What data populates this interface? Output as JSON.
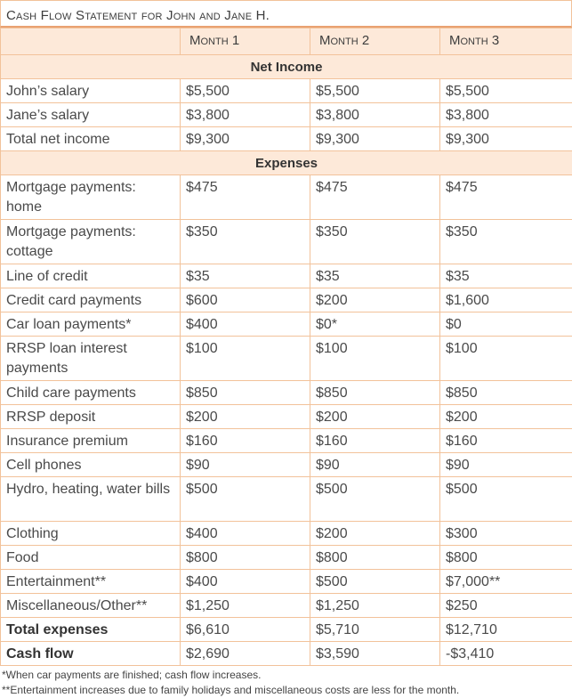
{
  "title": "Cash Flow Statement for John and Jane H.",
  "headers": [
    "Month 1",
    "Month 2",
    "Month 3"
  ],
  "sections": {
    "income_title": "Net Income",
    "expenses_title": "Expenses"
  },
  "income_rows": [
    {
      "label": "John’s salary",
      "m1": "$5,500",
      "m2": "$5,500",
      "m3": "$5,500"
    },
    {
      "label": "Jane’s salary",
      "m1": "$3,800",
      "m2": "$3,800",
      "m3": "$3,800"
    },
    {
      "label": "Total net income",
      "m1": "$9,300",
      "m2": "$9,300",
      "m3": "$9,300"
    }
  ],
  "expense_rows": [
    {
      "label": "Mortgage payments: home",
      "m1": "$475",
      "m2": "$475",
      "m3": "$475",
      "tall": true
    },
    {
      "label": "Mortgage payments: cottage",
      "m1": "$350",
      "m2": "$350",
      "m3": "$350",
      "tall": true
    },
    {
      "label": "Line of credit",
      "m1": "$35",
      "m2": "$35",
      "m3": "$35"
    },
    {
      "label": "Credit card payments",
      "m1": "$600",
      "m2": "$200",
      "m3": "$1,600"
    },
    {
      "label": "Car loan payments*",
      "m1": "$400",
      "m2": "$0*",
      "m3": "$0"
    },
    {
      "label": "RRSP loan interest payments",
      "m1": "$100",
      "m2": "$100",
      "m3": "$100",
      "tall": true
    },
    {
      "label": "Child care payments",
      "m1": "$850",
      "m2": "$850",
      "m3": "$850"
    },
    {
      "label": "RRSP deposit",
      "m1": "$200",
      "m2": "$200",
      "m3": "$200"
    },
    {
      "label": "Insurance premium",
      "m1": "$160",
      "m2": "$160",
      "m3": "$160"
    },
    {
      "label": "Cell phones",
      "m1": "$90",
      "m2": "$90",
      "m3": "$90"
    },
    {
      "label": "Hydro, heating, water bills",
      "m1": "$500",
      "m2": "$500",
      "m3": "$500",
      "tall": true
    },
    {
      "label": "Clothing",
      "m1": "$400",
      "m2": "$200",
      "m3": "$300"
    },
    {
      "label": "Food",
      "m1": "$800",
      "m2": "$800",
      "m3": "$800"
    },
    {
      "label": "Entertainment**",
      "m1": "$400",
      "m2": "$500",
      "m3": "$7,000**"
    },
    {
      "label": "Miscellaneous/Other**",
      "m1": "$1,250",
      "m2": "$1,250",
      "m3": "$250"
    }
  ],
  "totals": [
    {
      "label": "Total expenses",
      "m1": "$6,610",
      "m2": "$5,710",
      "m3": "$12,710"
    },
    {
      "label": "Cash flow",
      "m1": "$2,690",
      "m2": "$3,590",
      "m3": "-$3,410"
    }
  ],
  "notes": [
    "*When car payments are finished; cash flow increases.",
    "**Entertainment increases due to family holidays and miscellaneous costs are less for the month."
  ]
}
